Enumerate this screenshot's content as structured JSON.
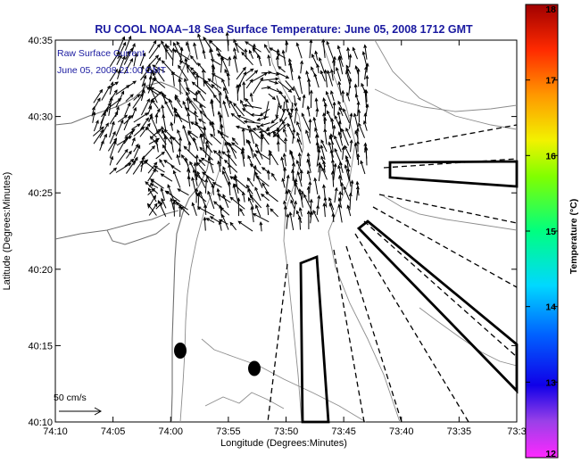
{
  "title": "RU COOL   NOAA–18  Sea Surface Temperature:  June 05, 2008 1712 GMT",
  "inset": {
    "line1": "Raw Surface Current",
    "line2": "June 05, 2008 21:00 GMT"
  },
  "scale_label": "50 cm/s",
  "colorbar": {
    "label": "Temperature (°C)",
    "min": 12,
    "max": 18,
    "ticks": [
      "12",
      "13",
      "14",
      "15",
      "16",
      "17",
      "18"
    ]
  },
  "chart_data": {
    "type": "map",
    "xlabel": "Longitude (Degrees:Minutes)",
    "ylabel": "Latitude (Degrees:Minutes)",
    "x_ticks": [
      "74:10",
      "74:05",
      "74:00",
      "73:55",
      "73:50",
      "73:45",
      "73:40",
      "73:35",
      "73:3"
    ],
    "y_ticks": [
      "40:10",
      "40:15",
      "40:20",
      "40:25",
      "40:30",
      "40:35"
    ],
    "xlim_minutes_west": [
      10,
      30
    ],
    "ylim_minutes_north": [
      10,
      35
    ]
  },
  "colors": {
    "title": "#1a1aa0",
    "frame": "#000000",
    "contour": "#8c8c8c"
  }
}
